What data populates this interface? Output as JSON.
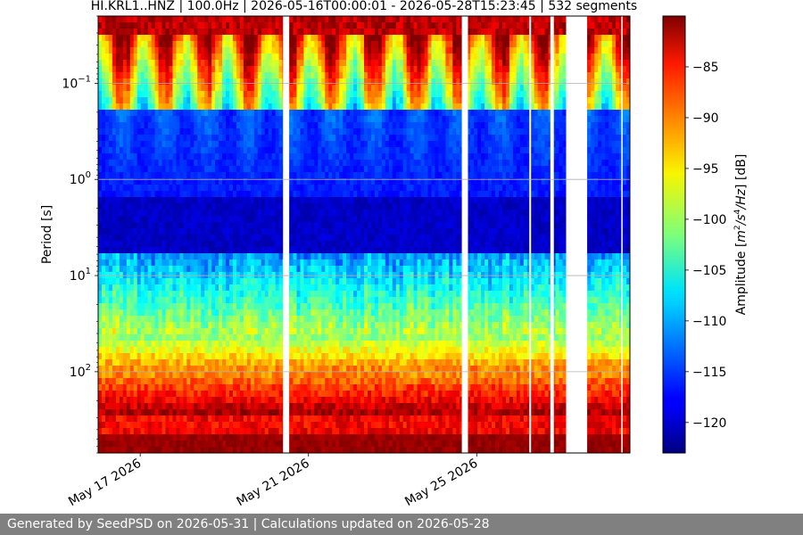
{
  "chart_data": {
    "type": "heatmap",
    "title": "HI.KRL1..HNZ | 100.0Hz | 2026-05-16T00:00:01 - 2026-05-28T15:23:45 | 532 segments",
    "xlabel": "",
    "ylabel": "Period [s]",
    "x_range": [
      "2026-05-16T00:00:01",
      "2026-05-28T15:23:45"
    ],
    "x_ticks": [
      "May 17 2026",
      "May 21 2026",
      "May 25 2026"
    ],
    "y_scale": "log",
    "y_range": [
      0.02,
      700
    ],
    "y_ticks": [
      {
        "value": 0.1,
        "base": "10",
        "exp": "−1"
      },
      {
        "value": 1,
        "base": "10",
        "exp": "0"
      },
      {
        "value": 10,
        "base": "10",
        "exp": "1"
      },
      {
        "value": 100,
        "base": "10",
        "exp": "2"
      }
    ],
    "grid": true,
    "colormap": "jet",
    "colorbar": {
      "label": "Amplitude [m²/s⁴/Hz] [dB]",
      "label_prefix": "Amplitude [",
      "label_unit_m": "m",
      "label_unit_s": "/s",
      "label_unit_hz": "/Hz",
      "label_suffix": "] [dB]",
      "range": [
        -123,
        -80
      ],
      "ticks": [
        "−85",
        "−90",
        "−95",
        "−100",
        "−105",
        "−110",
        "−115",
        "−120"
      ]
    },
    "data_gaps": [
      [
        "2026-05-20T09:30",
        "2026-05-20T13:00"
      ],
      [
        "2026-05-24T15:30",
        "2026-05-24T19:00"
      ],
      [
        "2026-05-26T06:00",
        "2026-05-26T07:00"
      ],
      [
        "2026-05-26T18:00",
        "2026-05-26T20:00"
      ],
      [
        "2026-05-27T03:00",
        "2026-05-27T15:00"
      ],
      [
        "2026-05-28T10:30",
        "2026-05-28T11:00"
      ]
    ]
  },
  "footer": {
    "generated": "Generated by SeedPSD on 2026-05-31",
    "separator": " | ",
    "updated": "Calculations updated on 2026-05-28"
  }
}
